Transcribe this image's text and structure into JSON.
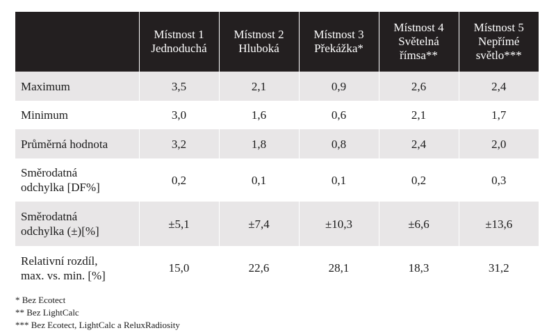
{
  "table": {
    "header": {
      "corner": "",
      "columns": [
        {
          "line1": "Místnost 1",
          "line2": "Jednoduchá",
          "line3": ""
        },
        {
          "line1": "Místnost 2",
          "line2": "Hluboká",
          "line3": ""
        },
        {
          "line1": "Místnost 3",
          "line2": "Překážka*",
          "line3": ""
        },
        {
          "line1": "Místnost 4",
          "line2": "Světelná",
          "line3": "římsa**"
        },
        {
          "line1": "Místnost 5",
          "line2": "Nepřímé",
          "line3": "světlo***"
        }
      ]
    },
    "rows": [
      {
        "label1": "Maximum",
        "label2": "",
        "values": [
          "3,5",
          "2,1",
          "0,9",
          "2,6",
          "2,4"
        ]
      },
      {
        "label1": "Minimum",
        "label2": "",
        "values": [
          "3,0",
          "1,6",
          "0,6",
          "2,1",
          "1,7"
        ]
      },
      {
        "label1": "Průměrná hodnota",
        "label2": "",
        "values": [
          "3,2",
          "1,8",
          "0,8",
          "2,4",
          "2,0"
        ]
      },
      {
        "label1": "Směrodatná",
        "label2": "odchylka [DF%]",
        "values": [
          "0,2",
          "0,1",
          "0,1",
          "0,2",
          "0,3"
        ]
      },
      {
        "label1": "Směrodatná",
        "label2": "odchylka (±)[%]",
        "values": [
          "±5,1",
          "±7,4",
          "±10,3",
          "±6,6",
          "±13,6"
        ]
      },
      {
        "label1": "Relativní rozdíl,",
        "label2": "max. vs. min. [%]",
        "values": [
          "15,0",
          "22,6",
          "28,1",
          "18,3",
          "31,2"
        ]
      }
    ]
  },
  "footnotes": [
    "* Bez Ecotect",
    "** Bez LightCalc",
    "*** Bez Ecotect, LightCalc a ReluxRadiosity"
  ]
}
